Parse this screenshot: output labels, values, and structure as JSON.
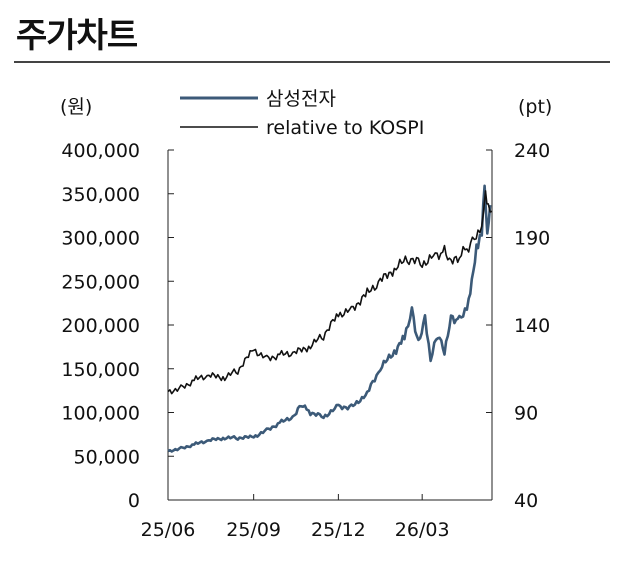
{
  "page": {
    "title": "주가차트"
  },
  "chart_data": {
    "type": "line",
    "title": "",
    "xlabel": "",
    "y_left_unit": "(원)",
    "y_right_unit": "(pt)",
    "ylim_left": [
      0,
      400000
    ],
    "ylim_right": [
      40,
      240
    ],
    "y_left_ticks": [
      {
        "value": 0,
        "label": "0"
      },
      {
        "value": 50000,
        "label": "50,000"
      },
      {
        "value": 100000,
        "label": "100,000"
      },
      {
        "value": 150000,
        "label": "150,000"
      },
      {
        "value": 200000,
        "label": "200,000"
      },
      {
        "value": 250000,
        "label": "250,000"
      },
      {
        "value": 300000,
        "label": "300,000"
      },
      {
        "value": 350000,
        "label": "350,000"
      },
      {
        "value": 400000,
        "label": "400,000"
      }
    ],
    "y_right_ticks": [
      {
        "value": 40,
        "label": "40"
      },
      {
        "value": 90,
        "label": "90"
      },
      {
        "value": 140,
        "label": "140"
      },
      {
        "value": 190,
        "label": "190"
      },
      {
        "value": 240,
        "label": "240"
      }
    ],
    "x_range": [
      "2025-06-01",
      "2026-05-15"
    ],
    "x_ticks": [
      {
        "date": "2025-06-01",
        "label": "25/06"
      },
      {
        "date": "2025-09-01",
        "label": "25/09"
      },
      {
        "date": "2025-12-01",
        "label": "25/12"
      },
      {
        "date": "2026-03-01",
        "label": "26/03"
      }
    ],
    "legend_position": "top",
    "grid": false,
    "series": [
      {
        "name": "삼성전자",
        "axis": "left",
        "color": "#3c5a78",
        "points": [
          [
            "2025-06-01",
            56000
          ],
          [
            "2025-06-15",
            59000
          ],
          [
            "2025-07-01",
            64000
          ],
          [
            "2025-07-15",
            68000
          ],
          [
            "2025-08-01",
            71000
          ],
          [
            "2025-08-15",
            71000
          ],
          [
            "2025-09-01",
            72000
          ],
          [
            "2025-09-15",
            80000
          ],
          [
            "2025-10-01",
            89000
          ],
          [
            "2025-10-15",
            96000
          ],
          [
            "2025-10-22",
            109000
          ],
          [
            "2025-11-01",
            100000
          ],
          [
            "2025-11-15",
            95000
          ],
          [
            "2025-12-01",
            107000
          ],
          [
            "2025-12-15",
            106000
          ],
          [
            "2026-01-01",
            122000
          ],
          [
            "2026-01-15",
            150000
          ],
          [
            "2026-02-01",
            172000
          ],
          [
            "2026-02-10",
            187000
          ],
          [
            "2026-02-18",
            218000
          ],
          [
            "2026-02-25",
            178000
          ],
          [
            "2026-03-04",
            207000
          ],
          [
            "2026-03-10",
            160000
          ],
          [
            "2026-03-18",
            190000
          ],
          [
            "2026-03-25",
            170000
          ],
          [
            "2026-04-01",
            210000
          ],
          [
            "2026-04-10",
            205000
          ],
          [
            "2026-04-20",
            225000
          ],
          [
            "2026-04-25",
            262000
          ],
          [
            "2026-04-30",
            295000
          ],
          [
            "2026-05-04",
            310000
          ],
          [
            "2026-05-07",
            360000
          ],
          [
            "2026-05-10",
            298000
          ],
          [
            "2026-05-13",
            337000
          ]
        ]
      },
      {
        "name": "relative to KOSPI",
        "axis": "right",
        "color": "#111111",
        "points": [
          [
            "2025-06-01",
            102
          ],
          [
            "2025-06-15",
            104
          ],
          [
            "2025-07-01",
            109
          ],
          [
            "2025-07-15",
            111
          ],
          [
            "2025-08-01",
            110
          ],
          [
            "2025-08-15",
            114
          ],
          [
            "2025-09-01",
            126
          ],
          [
            "2025-09-15",
            121
          ],
          [
            "2025-10-01",
            123
          ],
          [
            "2025-10-15",
            124
          ],
          [
            "2025-11-01",
            128
          ],
          [
            "2025-11-15",
            134
          ],
          [
            "2025-12-01",
            146
          ],
          [
            "2025-12-15",
            149
          ],
          [
            "2026-01-01",
            158
          ],
          [
            "2026-01-15",
            165
          ],
          [
            "2026-02-01",
            173
          ],
          [
            "2026-02-15",
            178
          ],
          [
            "2026-03-01",
            175
          ],
          [
            "2026-03-15",
            180
          ],
          [
            "2026-03-25",
            182
          ],
          [
            "2026-04-01",
            175
          ],
          [
            "2026-04-10",
            179
          ],
          [
            "2026-04-20",
            185
          ],
          [
            "2026-04-28",
            192
          ],
          [
            "2026-05-04",
            196
          ],
          [
            "2026-05-08",
            213
          ],
          [
            "2026-05-11",
            206
          ],
          [
            "2026-05-15",
            205
          ]
        ]
      }
    ]
  }
}
